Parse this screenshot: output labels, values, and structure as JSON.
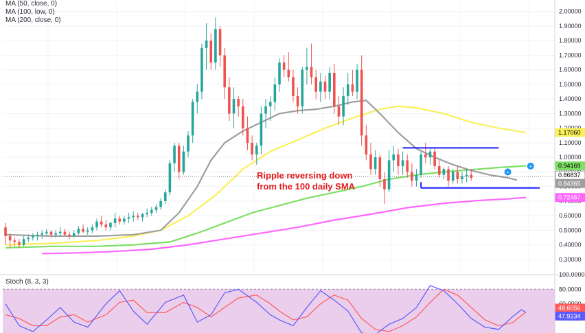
{
  "legend": {
    "ma50": "MA (50, close, 0)",
    "ma100": "MA (100, low, 0)",
    "ma200": "MA (200, close, 0)"
  },
  "stoch_title": "Stoch (8, 3, 3)",
  "annotation": {
    "line1": "Ripple reversing down",
    "line2": "from the 100 daily SMA"
  },
  "colors": {
    "up": "#26a69a",
    "down": "#ef5350",
    "ma50": "#9e9e9e",
    "ma100": "#7ddf64",
    "ma200": "#ff66ff",
    "yellow_ma": "#f9f05a",
    "range_lines": "#1a1aff",
    "stoch_bg": "#e4bee4",
    "stoch_k": "#5a5aff",
    "stoch_d": "#ff5a5a"
  },
  "chart_data": {
    "type": "candlestick",
    "price_axis": {
      "ylim": [
        0.21,
        2.06
      ],
      "ticks": [
        "2.00000",
        "1.90000",
        "1.80000",
        "1.70000",
        "1.60000",
        "1.50000",
        "1.40000",
        "1.30000",
        "1.20000",
        "1.10000",
        "1.00000",
        "0.90000",
        "0.80000",
        "0.70000",
        "0.60000",
        "0.50000",
        "0.40000",
        "0.30000"
      ],
      "tick_values": [
        2.0,
        1.9,
        1.8,
        1.7,
        1.6,
        1.5,
        1.4,
        1.3,
        1.2,
        1.1,
        1.0,
        0.9,
        0.8,
        0.7,
        0.6,
        0.5,
        0.4,
        0.3
      ]
    },
    "badges": [
      {
        "value": 1.1706,
        "label": "1.17060",
        "bg": "#f9f05a",
        "fg": "#000000"
      },
      {
        "value": 0.94169,
        "label": "0.94169",
        "bg": "#7ddf64",
        "fg": "#000000"
      },
      {
        "value": 0.86837,
        "label": "0.86837",
        "bg": "#ffffff",
        "fg": "#000000"
      },
      {
        "value": 0.84365,
        "label": "0.84365",
        "bg": "#9e9e9e",
        "fg": "#ffffff"
      },
      {
        "value": 0.72467,
        "label": "0.72467",
        "bg": "#ff66ff",
        "fg": "#ffffff"
      }
    ],
    "current_price": 0.86837,
    "range_lines": [
      {
        "value": 1.065,
        "from": 87,
        "to": 108
      },
      {
        "value": 0.79,
        "from": 91,
        "to": 117
      }
    ],
    "candles": [
      [
        0.52,
        0.55,
        0.4,
        0.46
      ],
      [
        0.46,
        0.48,
        0.38,
        0.43
      ],
      [
        0.43,
        0.45,
        0.39,
        0.42
      ],
      [
        0.42,
        0.44,
        0.38,
        0.4
      ],
      [
        0.4,
        0.46,
        0.39,
        0.44
      ],
      [
        0.44,
        0.47,
        0.42,
        0.45
      ],
      [
        0.45,
        0.48,
        0.43,
        0.46
      ],
      [
        0.46,
        0.49,
        0.43,
        0.47
      ],
      [
        0.47,
        0.5,
        0.44,
        0.48
      ],
      [
        0.48,
        0.51,
        0.46,
        0.49
      ],
      [
        0.49,
        0.5,
        0.45,
        0.47
      ],
      [
        0.47,
        0.5,
        0.45,
        0.48
      ],
      [
        0.48,
        0.52,
        0.46,
        0.49
      ],
      [
        0.49,
        0.51,
        0.46,
        0.47
      ],
      [
        0.47,
        0.49,
        0.44,
        0.46
      ],
      [
        0.46,
        0.5,
        0.45,
        0.48
      ],
      [
        0.48,
        0.53,
        0.47,
        0.51
      ],
      [
        0.51,
        0.54,
        0.48,
        0.49
      ],
      [
        0.49,
        0.52,
        0.47,
        0.5
      ],
      [
        0.5,
        0.54,
        0.48,
        0.52
      ],
      [
        0.52,
        0.58,
        0.5,
        0.56
      ],
      [
        0.56,
        0.6,
        0.52,
        0.54
      ],
      [
        0.54,
        0.57,
        0.5,
        0.52
      ],
      [
        0.52,
        0.56,
        0.5,
        0.55
      ],
      [
        0.55,
        0.62,
        0.52,
        0.58
      ],
      [
        0.58,
        0.6,
        0.54,
        0.56
      ],
      [
        0.56,
        0.6,
        0.54,
        0.58
      ],
      [
        0.58,
        0.62,
        0.55,
        0.59
      ],
      [
        0.59,
        0.63,
        0.56,
        0.6
      ],
      [
        0.6,
        0.62,
        0.57,
        0.59
      ],
      [
        0.59,
        0.62,
        0.56,
        0.61
      ],
      [
        0.61,
        0.65,
        0.59,
        0.62
      ],
      [
        0.62,
        0.66,
        0.6,
        0.64
      ],
      [
        0.64,
        0.68,
        0.62,
        0.66
      ],
      [
        0.66,
        0.72,
        0.64,
        0.7
      ],
      [
        0.7,
        0.78,
        0.68,
        0.76
      ],
      [
        0.76,
        0.98,
        0.74,
        0.96
      ],
      [
        0.96,
        1.1,
        0.9,
        1.08
      ],
      [
        1.08,
        1.1,
        0.85,
        0.9
      ],
      [
        0.9,
        1.08,
        0.88,
        1.04
      ],
      [
        1.04,
        1.18,
        1.0,
        1.15
      ],
      [
        1.15,
        1.4,
        1.1,
        1.38
      ],
      [
        1.38,
        1.5,
        1.3,
        1.45
      ],
      [
        1.45,
        1.78,
        1.4,
        1.75
      ],
      [
        1.75,
        1.92,
        1.6,
        1.8
      ],
      [
        1.8,
        1.85,
        1.6,
        1.65
      ],
      [
        1.65,
        1.96,
        1.6,
        1.88
      ],
      [
        1.88,
        1.9,
        1.62,
        1.7
      ],
      [
        1.7,
        1.75,
        1.4,
        1.48
      ],
      [
        1.48,
        1.55,
        1.25,
        1.3
      ],
      [
        1.3,
        1.48,
        1.2,
        1.4
      ],
      [
        1.4,
        1.42,
        1.28,
        1.35
      ],
      [
        1.35,
        1.4,
        1.15,
        1.2
      ],
      [
        1.2,
        1.28,
        1.05,
        1.1
      ],
      [
        1.1,
        1.15,
        0.98,
        1.02
      ],
      [
        1.02,
        1.1,
        0.95,
        1.08
      ],
      [
        1.08,
        1.35,
        1.02,
        1.3
      ],
      [
        1.3,
        1.4,
        1.2,
        1.35
      ],
      [
        1.35,
        1.42,
        1.25,
        1.38
      ],
      [
        1.38,
        1.55,
        1.32,
        1.5
      ],
      [
        1.5,
        1.68,
        1.45,
        1.65
      ],
      [
        1.65,
        1.7,
        1.55,
        1.6
      ],
      [
        1.6,
        1.72,
        1.52,
        1.55
      ],
      [
        1.55,
        1.6,
        1.38,
        1.42
      ],
      [
        1.42,
        1.48,
        1.3,
        1.35
      ],
      [
        1.35,
        1.62,
        1.3,
        1.6
      ],
      [
        1.6,
        1.75,
        1.5,
        1.62
      ],
      [
        1.62,
        1.78,
        1.5,
        1.55
      ],
      [
        1.55,
        1.6,
        1.4,
        1.45
      ],
      [
        1.45,
        1.58,
        1.38,
        1.52
      ],
      [
        1.52,
        1.56,
        1.4,
        1.45
      ],
      [
        1.45,
        1.62,
        1.4,
        1.58
      ],
      [
        1.58,
        1.64,
        1.3,
        1.35
      ],
      [
        1.35,
        1.42,
        1.22,
        1.28
      ],
      [
        1.28,
        1.48,
        1.22,
        1.42
      ],
      [
        1.42,
        1.58,
        1.36,
        1.5
      ],
      [
        1.5,
        1.6,
        1.42,
        1.45
      ],
      [
        1.45,
        1.64,
        1.4,
        1.6
      ],
      [
        1.6,
        1.7,
        1.08,
        1.15
      ],
      [
        1.15,
        1.22,
        0.98,
        1.02
      ],
      [
        1.02,
        1.1,
        0.88,
        0.92
      ],
      [
        0.92,
        1.05,
        0.88,
        1.0
      ],
      [
        1.0,
        1.02,
        0.8,
        0.85
      ],
      [
        0.85,
        0.9,
        0.68,
        0.78
      ],
      [
        0.78,
        1.05,
        0.76,
        0.98
      ],
      [
        0.98,
        1.08,
        0.9,
        1.02
      ],
      [
        1.02,
        1.06,
        0.88,
        0.94
      ],
      [
        0.94,
        1.04,
        0.88,
        0.98
      ],
      [
        0.98,
        1.02,
        0.86,
        0.9
      ],
      [
        0.9,
        0.96,
        0.8,
        0.84
      ],
      [
        0.84,
        0.92,
        0.8,
        0.88
      ],
      [
        0.88,
        1.04,
        0.86,
        1.02
      ],
      [
        1.02,
        1.1,
        0.96,
        1.0
      ],
      [
        1.0,
        1.06,
        0.95,
        1.04
      ],
      [
        1.04,
        1.07,
        0.92,
        0.94
      ],
      [
        0.94,
        0.98,
        0.86,
        0.88
      ],
      [
        0.88,
        0.93,
        0.85,
        0.92
      ],
      [
        0.92,
        0.94,
        0.8,
        0.84
      ],
      [
        0.84,
        0.92,
        0.82,
        0.9
      ],
      [
        0.9,
        0.94,
        0.82,
        0.85
      ],
      [
        0.85,
        0.9,
        0.82,
        0.87
      ],
      [
        0.87,
        0.92,
        0.83,
        0.88
      ],
      [
        0.88,
        0.92,
        0.84,
        0.86
      ]
    ],
    "ma50": [
      [
        0,
        0.47
      ],
      [
        10,
        0.46
      ],
      [
        20,
        0.46
      ],
      [
        28,
        0.47
      ],
      [
        34,
        0.5
      ],
      [
        38,
        0.62
      ],
      [
        42,
        0.8
      ],
      [
        45,
        0.98
      ],
      [
        48,
        1.1
      ],
      [
        52,
        1.18
      ],
      [
        56,
        1.24
      ],
      [
        60,
        1.3
      ],
      [
        64,
        1.32
      ],
      [
        68,
        1.33
      ],
      [
        72,
        1.35
      ],
      [
        76,
        1.38
      ],
      [
        79,
        1.39
      ],
      [
        82,
        1.3
      ],
      [
        86,
        1.17
      ],
      [
        90,
        1.06
      ],
      [
        94,
        1.0
      ],
      [
        98,
        0.95
      ],
      [
        102,
        0.91
      ],
      [
        106,
        0.88
      ],
      [
        110,
        0.86
      ],
      [
        112,
        0.844
      ]
    ],
    "ma_yellow": [
      [
        0,
        0.4
      ],
      [
        10,
        0.41
      ],
      [
        20,
        0.43
      ],
      [
        28,
        0.46
      ],
      [
        34,
        0.5
      ],
      [
        40,
        0.6
      ],
      [
        46,
        0.74
      ],
      [
        52,
        0.92
      ],
      [
        58,
        1.04
      ],
      [
        64,
        1.12
      ],
      [
        70,
        1.2
      ],
      [
        76,
        1.27
      ],
      [
        82,
        1.33
      ],
      [
        86,
        1.35
      ],
      [
        90,
        1.34
      ],
      [
        96,
        1.3
      ],
      [
        102,
        1.24
      ],
      [
        108,
        1.2
      ],
      [
        114,
        1.17
      ]
    ],
    "ma100": [
      [
        0,
        0.38
      ],
      [
        10,
        0.39
      ],
      [
        20,
        0.39
      ],
      [
        28,
        0.4
      ],
      [
        36,
        0.42
      ],
      [
        42,
        0.48
      ],
      [
        48,
        0.55
      ],
      [
        54,
        0.62
      ],
      [
        60,
        0.67
      ],
      [
        66,
        0.72
      ],
      [
        72,
        0.76
      ],
      [
        78,
        0.8
      ],
      [
        84,
        0.85
      ],
      [
        90,
        0.88
      ],
      [
        96,
        0.9
      ],
      [
        102,
        0.915
      ],
      [
        108,
        0.93
      ],
      [
        114,
        0.942
      ]
    ],
    "ma200": [
      [
        8,
        0.34
      ],
      [
        16,
        0.345
      ],
      [
        24,
        0.355
      ],
      [
        32,
        0.37
      ],
      [
        40,
        0.4
      ],
      [
        48,
        0.44
      ],
      [
        56,
        0.48
      ],
      [
        64,
        0.52
      ],
      [
        72,
        0.57
      ],
      [
        80,
        0.61
      ],
      [
        88,
        0.655
      ],
      [
        96,
        0.685
      ],
      [
        104,
        0.705
      ],
      [
        110,
        0.715
      ],
      [
        114,
        0.725
      ]
    ],
    "stoch": {
      "ylim": [
        20,
        100
      ],
      "ticks": [
        "100.0000",
        "80.0000",
        "60.0000",
        "40.0000"
      ],
      "tick_values": [
        100,
        80,
        60,
        40
      ],
      "band": [
        20,
        80
      ],
      "badges": [
        {
          "value": 48.6056,
          "label": "48.6056",
          "bg": "#ff5a5a",
          "fg": "#ffffff"
        },
        {
          "value": 47.9234,
          "label": "47.9234",
          "bg": "#5a5aff",
          "fg": "#ffffff"
        }
      ],
      "k": [
        [
          0,
          60
        ],
        [
          3,
          30
        ],
        [
          6,
          22
        ],
        [
          9,
          38
        ],
        [
          12,
          55
        ],
        [
          15,
          35
        ],
        [
          18,
          28
        ],
        [
          22,
          60
        ],
        [
          25,
          78
        ],
        [
          28,
          50
        ],
        [
          31,
          32
        ],
        [
          35,
          62
        ],
        [
          39,
          72
        ],
        [
          42,
          35
        ],
        [
          45,
          45
        ],
        [
          48,
          75
        ],
        [
          51,
          80
        ],
        [
          55,
          62
        ],
        [
          58,
          45
        ],
        [
          60,
          38
        ],
        [
          63,
          30
        ],
        [
          66,
          55
        ],
        [
          69,
          78
        ],
        [
          72,
          65
        ],
        [
          75,
          50
        ],
        [
          78,
          20
        ],
        [
          81,
          18
        ],
        [
          84,
          32
        ],
        [
          87,
          40
        ],
        [
          90,
          55
        ],
        [
          93,
          85
        ],
        [
          96,
          78
        ],
        [
          99,
          60
        ],
        [
          102,
          40
        ],
        [
          105,
          28
        ],
        [
          108,
          25
        ],
        [
          111,
          42
        ],
        [
          113,
          52
        ],
        [
          114,
          48
        ]
      ],
      "d": [
        [
          0,
          45
        ],
        [
          3,
          40
        ],
        [
          6,
          30
        ],
        [
          9,
          30
        ],
        [
          12,
          42
        ],
        [
          15,
          45
        ],
        [
          18,
          35
        ],
        [
          22,
          45
        ],
        [
          25,
          62
        ],
        [
          28,
          65
        ],
        [
          31,
          48
        ],
        [
          35,
          48
        ],
        [
          39,
          62
        ],
        [
          42,
          55
        ],
        [
          45,
          42
        ],
        [
          48,
          55
        ],
        [
          51,
          68
        ],
        [
          55,
          72
        ],
        [
          58,
          60
        ],
        [
          60,
          50
        ],
        [
          63,
          38
        ],
        [
          66,
          42
        ],
        [
          69,
          60
        ],
        [
          72,
          72
        ],
        [
          75,
          65
        ],
        [
          78,
          40
        ],
        [
          81,
          25
        ],
        [
          84,
          22
        ],
        [
          87,
          30
        ],
        [
          90,
          42
        ],
        [
          93,
          62
        ],
        [
          96,
          80
        ],
        [
          99,
          72
        ],
        [
          102,
          55
        ],
        [
          105,
          38
        ],
        [
          108,
          30
        ],
        [
          111,
          34
        ],
        [
          113,
          44
        ],
        [
          114,
          48.6
        ]
      ]
    }
  }
}
